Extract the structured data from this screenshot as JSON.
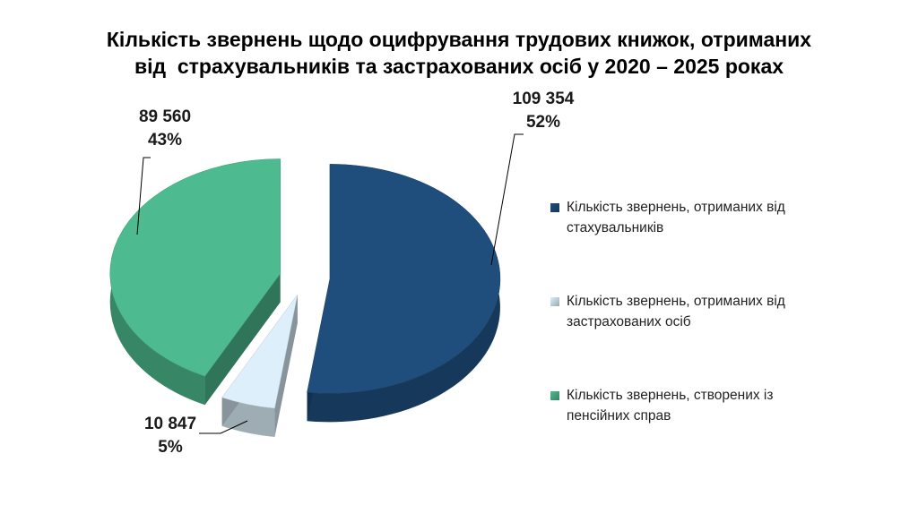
{
  "chart_data": {
    "type": "pie",
    "title": [
      "Кількість звернень щодо оцифрування трудових книжок, отриманих",
      "від  страхувальників та застрахованих осіб у 2020 – 2025 роках"
    ],
    "categories": [
      "Кількість звернень, отриманих від стахувальників",
      "Кількість звернень, отриманих від застрахованих осіб",
      "Кількість звернень, створених із пенсійних справ"
    ],
    "values": [
      109354,
      10847,
      89560
    ],
    "value_labels": [
      "109 354",
      "10 847",
      "89 560"
    ],
    "percent_labels": [
      "52%",
      "5%",
      "43%"
    ],
    "colors": [
      "#1f4e7d",
      "#dcefFA",
      "#4dbb8f"
    ],
    "legend": "right"
  }
}
